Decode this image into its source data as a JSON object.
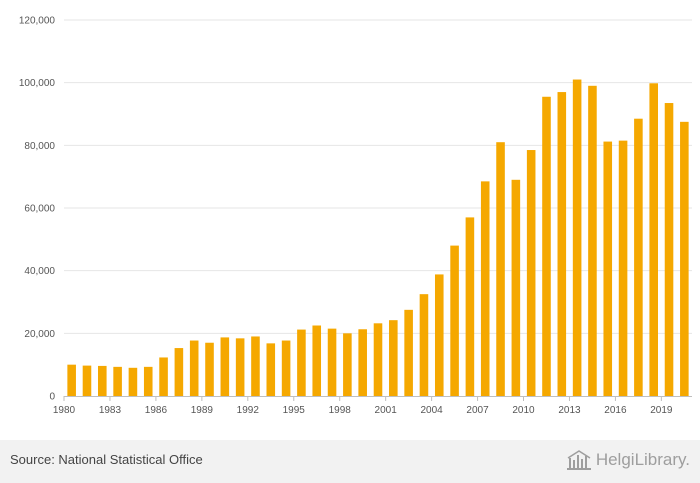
{
  "chart_data": {
    "type": "bar",
    "title": "",
    "xlabel": "",
    "ylabel": "",
    "ylim": [
      0,
      120000
    ],
    "yticks": [
      0,
      20000,
      40000,
      60000,
      80000,
      100000,
      120000
    ],
    "ytick_labels": [
      "0",
      "20,000",
      "40,000",
      "60,000",
      "80,000",
      "100,000",
      "120,000"
    ],
    "x_tick_labels": [
      "1980",
      "1983",
      "1986",
      "1989",
      "1992",
      "1995",
      "1998",
      "2001",
      "2004",
      "2007",
      "2010",
      "2013",
      "2016",
      "2019"
    ],
    "grid": true,
    "bar_color": "#f5a800",
    "categories": [
      "1980",
      "1981",
      "1982",
      "1983",
      "1984",
      "1985",
      "1986",
      "1987",
      "1988",
      "1989",
      "1990",
      "1991",
      "1992",
      "1993",
      "1994",
      "1995",
      "1996",
      "1997",
      "1998",
      "1999",
      "2000",
      "2001",
      "2002",
      "2003",
      "2004",
      "2005",
      "2006",
      "2007",
      "2008",
      "2009",
      "2010",
      "2011",
      "2012",
      "2013",
      "2014",
      "2015",
      "2016",
      "2017",
      "2018",
      "2019",
      "2020"
    ],
    "values": [
      10000,
      9700,
      9600,
      9300,
      9000,
      9300,
      12300,
      15300,
      17700,
      17000,
      18700,
      18400,
      19000,
      16800,
      17700,
      21200,
      22500,
      21500,
      20000,
      21300,
      23200,
      24200,
      27500,
      32500,
      38800,
      48000,
      57000,
      68500,
      81000,
      69000,
      78500,
      95500,
      97000,
      101000,
      99000,
      81200,
      81500,
      88500,
      99800,
      93500,
      87500
    ]
  },
  "footer": {
    "source": "Source: National Statistical Office",
    "brand_a": "Helgi",
    "brand_b": "Library."
  },
  "colors": {
    "footer_bg": "#f2f2f2",
    "brand": "#9e9e9e"
  }
}
